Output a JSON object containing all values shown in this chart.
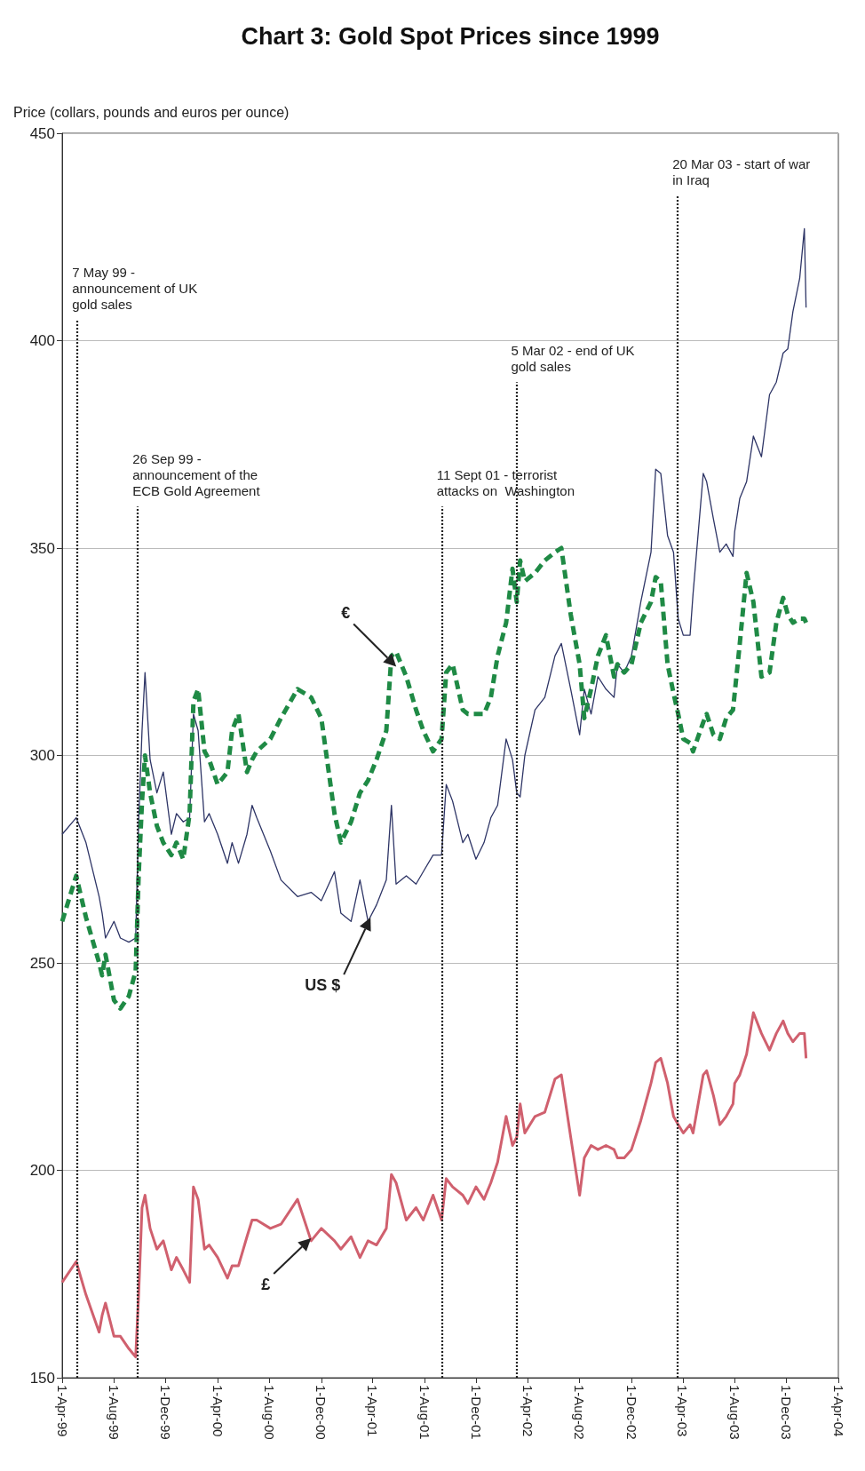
{
  "chart_data": {
    "type": "line",
    "title": "Chart 3: Gold Spot Prices since 1999",
    "ylabel": "Price (collars, pounds and euros per ounce)",
    "x": [
      "1999-04-01",
      "1999-05-04",
      "1999-05-27",
      "1999-06-27",
      "1999-07-04",
      "1999-07-12",
      "1999-08-01",
      "1999-08-16",
      "1999-09-05",
      "1999-09-21",
      "1999-09-28",
      "1999-10-06",
      "1999-10-13",
      "1999-10-25",
      "1999-11-10",
      "1999-11-25",
      "1999-12-14",
      "1999-12-26",
      "2000-01-11",
      "2000-01-26",
      "2000-02-04",
      "2000-02-15",
      "2000-03-01",
      "2000-03-12",
      "2000-04-01",
      "2000-04-24",
      "2000-05-05",
      "2000-05-20",
      "2000-06-09",
      "2000-06-21",
      "2000-07-02",
      "2000-08-03",
      "2000-08-28",
      "2000-10-06",
      "2000-11-07",
      "2000-12-01",
      "2001-01-01",
      "2001-01-16",
      "2001-02-09",
      "2001-03-02",
      "2001-03-21",
      "2001-04-10",
      "2001-05-03",
      "2001-05-15",
      "2001-05-26",
      "2001-06-19",
      "2001-07-12",
      "2001-07-29",
      "2001-08-21",
      "2001-09-10",
      "2001-09-21",
      "2001-10-06",
      "2001-10-30",
      "2001-11-11",
      "2001-11-30",
      "2001-12-19",
      "2002-01-04",
      "2002-01-20",
      "2002-02-09",
      "2002-02-24",
      "2002-03-06",
      "2002-03-14",
      "2002-03-25",
      "2002-04-18",
      "2002-05-11",
      "2002-06-04",
      "2002-06-19",
      "2002-07-11",
      "2002-08-01",
      "2002-08-12",
      "2002-08-28",
      "2002-09-13",
      "2002-10-02",
      "2002-10-21",
      "2002-10-29",
      "2002-11-14",
      "2002-12-01",
      "2002-12-23",
      "2003-01-16",
      "2003-01-27",
      "2003-02-08",
      "2003-02-24",
      "2003-03-10",
      "2003-03-21",
      "2003-04-02",
      "2003-04-18",
      "2003-04-25",
      "2003-05-19",
      "2003-05-27",
      "2003-06-12",
      "2003-06-27",
      "2003-07-12",
      "2003-07-28",
      "2003-08-01",
      "2003-08-13",
      "2003-08-29",
      "2003-09-14",
      "2003-10-03",
      "2003-10-22",
      "2003-11-07",
      "2003-11-23",
      "2003-12-04",
      "2003-12-16",
      "2004-01-01",
      "2004-01-12",
      "2004-01-16"
    ],
    "series": [
      {
        "name": "US $",
        "color": "#2e3566",
        "line_style": "solid",
        "values": [
          281,
          285,
          279,
          266,
          262,
          256,
          260,
          256,
          255,
          256,
          284,
          306,
          320,
          299,
          291,
          296,
          281,
          286,
          284,
          285,
          310,
          306,
          284,
          286,
          281,
          274,
          279,
          274,
          281,
          288,
          285,
          277,
          270,
          266,
          267,
          265,
          272,
          262,
          260,
          270,
          260,
          264,
          270,
          288,
          269,
          271,
          269,
          272,
          276,
          276,
          293,
          289,
          279,
          281,
          275,
          279,
          285,
          288,
          304,
          299,
          291,
          290,
          300,
          311,
          314,
          324,
          327,
          316,
          305,
          316,
          310,
          319,
          316,
          314,
          322,
          320,
          324,
          337,
          349,
          369,
          368,
          353,
          349,
          333,
          329,
          329,
          339,
          368,
          366,
          357,
          349,
          351,
          348,
          354,
          362,
          366,
          377,
          372,
          387,
          390,
          397,
          398,
          407,
          415,
          427,
          408
        ]
      },
      {
        "name": "€",
        "color": "#1f8a45",
        "line_style": "dashed",
        "values": [
          260,
          271,
          261,
          250,
          247,
          252,
          241,
          239,
          242,
          248,
          271,
          289,
          300,
          291,
          283,
          279,
          276,
          279,
          275,
          286,
          313,
          316,
          301,
          299,
          293,
          296,
          306,
          310,
          296,
          299,
          301,
          304,
          309,
          316,
          314,
          309,
          286,
          279,
          284,
          291,
          294,
          299,
          306,
          324,
          325,
          319,
          311,
          306,
          301,
          304,
          320,
          322,
          311,
          310,
          310,
          310,
          314,
          324,
          332,
          345,
          337,
          347,
          342,
          344,
          347,
          349,
          350,
          334,
          322,
          309,
          316,
          324,
          329,
          319,
          322,
          320,
          322,
          332,
          337,
          343,
          342,
          322,
          315,
          310,
          304,
          303,
          301,
          308,
          310,
          305,
          304,
          309,
          311,
          315,
          327,
          344,
          337,
          319,
          320,
          332,
          338,
          334,
          332,
          333,
          333,
          332
        ]
      },
      {
        "name": "£",
        "color": "#d0606e",
        "line_style": "solid",
        "values": [
          173,
          178,
          170,
          161,
          165,
          168,
          160,
          160,
          157,
          155,
          170,
          191,
          194,
          186,
          181,
          183,
          176,
          179,
          176,
          173,
          196,
          193,
          181,
          182,
          179,
          174,
          177,
          177,
          184,
          188,
          188,
          186,
          187,
          193,
          183,
          186,
          183,
          181,
          184,
          179,
          183,
          182,
          186,
          199,
          197,
          188,
          191,
          188,
          194,
          188,
          198,
          196,
          194,
          192,
          196,
          193,
          197,
          202,
          213,
          206,
          208,
          216,
          209,
          213,
          214,
          222,
          223,
          208,
          194,
          203,
          206,
          205,
          206,
          205,
          203,
          203,
          205,
          212,
          221,
          226,
          227,
          221,
          213,
          211,
          209,
          211,
          209,
          223,
          224,
          218,
          211,
          213,
          216,
          221,
          223,
          228,
          238,
          233,
          229,
          233,
          236,
          233,
          231,
          233,
          233,
          227
        ]
      }
    ],
    "xlim": [
      "1999-04-01",
      "2004-04-01"
    ],
    "xticks": [
      {
        "value": "1999-04-01",
        "label": "1-Apr-99"
      },
      {
        "value": "1999-08-01",
        "label": "1-Aug-99"
      },
      {
        "value": "1999-12-01",
        "label": "1-Dec-99"
      },
      {
        "value": "2000-04-01",
        "label": "1-Apr-00"
      },
      {
        "value": "2000-08-01",
        "label": "1-Aug-00"
      },
      {
        "value": "2000-12-01",
        "label": "1-Dec-00"
      },
      {
        "value": "2001-04-01",
        "label": "1-Apr-01"
      },
      {
        "value": "2001-08-01",
        "label": "1-Aug-01"
      },
      {
        "value": "2001-12-01",
        "label": "1-Dec-01"
      },
      {
        "value": "2002-04-01",
        "label": "1-Apr-02"
      },
      {
        "value": "2002-08-01",
        "label": "1-Aug-02"
      },
      {
        "value": "2002-12-01",
        "label": "1-Dec-02"
      },
      {
        "value": "2003-04-01",
        "label": "1-Apr-03"
      },
      {
        "value": "2003-08-01",
        "label": "1-Aug-03"
      },
      {
        "value": "2003-12-01",
        "label": "1-Dec-03"
      },
      {
        "value": "2004-04-01",
        "label": "1-Apr-04"
      }
    ],
    "ylim": [
      150,
      450
    ],
    "yticks": [
      150,
      200,
      250,
      300,
      350,
      400,
      450
    ],
    "grid": "y",
    "ref_lines": [
      {
        "axis": "x",
        "value": "1999-05-07",
        "label": "7 May 99 - announcement of UK gold sales",
        "color": "#222222",
        "line_style": "dotted"
      },
      {
        "axis": "x",
        "value": "1999-09-26",
        "label": "26 Sep 99 - announcement of the ECB Gold Agreement",
        "color": "#222222",
        "line_style": "dotted"
      },
      {
        "axis": "x",
        "value": "2001-09-11",
        "label": "11 Sept 01 - terrorist attacks on  Washington",
        "color": "#222222",
        "line_style": "dotted"
      },
      {
        "axis": "x",
        "value": "2002-03-05",
        "label": "5 Mar 02 - end of UK gold sales",
        "color": "#222222",
        "line_style": "dotted"
      },
      {
        "axis": "x",
        "value": "2003-03-20",
        "label": "20 Mar 03 - start of war in Iraq",
        "color": "#222222",
        "line_style": "dotted"
      }
    ]
  }
}
